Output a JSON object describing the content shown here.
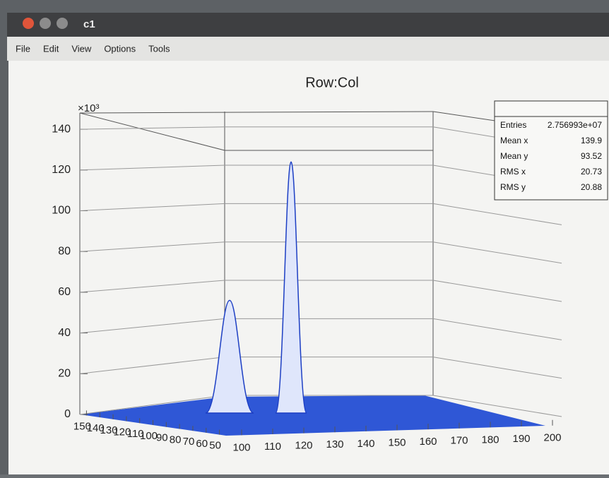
{
  "window": {
    "title": "c1"
  },
  "menu": [
    "File",
    "Edit",
    "View",
    "Options",
    "Tools"
  ],
  "canvas": {
    "title": "Row:Col",
    "stats": [
      {
        "label": "Entries",
        "value": "2.756993e+07"
      },
      {
        "label": "Mean x",
        "value": 139.9
      },
      {
        "label": "Mean y",
        "value": 93.52
      },
      {
        "label": "RMS x",
        "value": 20.73
      },
      {
        "label": "RMS y",
        "value": 20.88
      }
    ],
    "z_axis": {
      "multiplier": "×10³",
      "lim": [
        0,
        148
      ],
      "ticks": [
        0,
        20,
        40,
        60,
        80,
        100,
        120,
        140
      ]
    },
    "x_axis": {
      "lim": [
        95,
        200
      ],
      "ticks": [
        100,
        110,
        120,
        130,
        140,
        150,
        160,
        170,
        180,
        190,
        200
      ]
    },
    "y_axis": {
      "lim": [
        155,
        45
      ],
      "ticks": [
        150,
        140,
        130,
        120,
        110,
        100,
        90,
        80,
        70,
        60,
        50
      ]
    },
    "peaks": [
      56,
      124
    ]
  }
}
